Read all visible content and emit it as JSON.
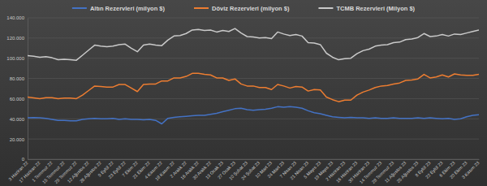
{
  "chart_data": {
    "type": "line",
    "categories": [
      "3 Haziran 22",
      null,
      "17 Haziran 22",
      null,
      "1 Temmuz 22",
      null,
      "15 Temmuz 22",
      null,
      "29 Temmuz 22",
      null,
      "12 Ağustos 22",
      null,
      "26 Ağustos 22",
      null,
      "9 Eylül 22",
      null,
      "23 Eylül 22",
      null,
      "7 Ekim 22",
      null,
      "21 Ekim 22",
      null,
      "4 Kasım 22",
      null,
      "18 Kasım 22",
      null,
      "2 Aralık 22",
      null,
      "16 Aralık 22",
      null,
      "30 Aralık 22",
      null,
      "13 Ocak 23",
      null,
      "27 Ocak 23",
      null,
      "10 Şubat 23",
      null,
      "24 Şubat 23",
      null,
      "10 Mart 23",
      null,
      "24 Mart 23",
      null,
      "7 Nisan 23",
      null,
      "21 Nisan 23",
      null,
      "5 Mayıs 23",
      null,
      "19 Mayıs 23",
      null,
      "2 Haziran 23",
      null,
      "16 Haziran 23",
      null,
      "30 Haziran 23",
      null,
      "14 Temmuz 23",
      null,
      "28 Temmuz 23",
      null,
      "11 Ağustos 23",
      null,
      "25 Ağustos 23",
      null,
      "8 Eylül 23",
      null,
      "22 Eylül 23",
      null,
      "6 Ekim 23",
      null,
      "20 Ekim 23",
      null,
      "3 Kasım 23"
    ],
    "series": [
      {
        "name": "Altın Rezervleri (milyon $)",
        "color": "#4472c4",
        "values": [
          41000,
          41200,
          41000,
          40500,
          39500,
          38500,
          38500,
          38000,
          38000,
          39500,
          40000,
          40500,
          40000,
          40000,
          40500,
          39500,
          40000,
          39500,
          39500,
          39000,
          39500,
          38500,
          35000,
          40500,
          41500,
          42000,
          42500,
          43000,
          43500,
          43500,
          44500,
          45500,
          47000,
          48500,
          50000,
          50500,
          49000,
          48500,
          49000,
          49500,
          50500,
          52000,
          51500,
          52000,
          51500,
          50500,
          48000,
          46000,
          45000,
          43500,
          42000,
          41500,
          41000,
          41500,
          41000,
          41000,
          40500,
          41000,
          40500,
          40500,
          41000,
          40500,
          40500,
          40500,
          41000,
          40500,
          41000,
          40500,
          40000,
          40500,
          39500,
          40000,
          42000,
          43500,
          44000
        ]
      },
      {
        "name": "Döviz Rezervleri (milyon $)",
        "color": "#ed7d31",
        "values": [
          61500,
          60800,
          60000,
          61000,
          61000,
          60000,
          60500,
          60500,
          60000,
          63500,
          68000,
          72500,
          72000,
          71500,
          71500,
          74000,
          74000,
          70500,
          67000,
          74000,
          74500,
          74500,
          77500,
          77500,
          80500,
          80500,
          82000,
          85000,
          85000,
          84000,
          83500,
          80500,
          80500,
          78000,
          79500,
          74500,
          72500,
          72500,
          71000,
          71000,
          69000,
          74000,
          72500,
          70500,
          72000,
          71500,
          67500,
          69000,
          68500,
          61500,
          59000,
          57000,
          58500,
          58500,
          63500,
          66500,
          68500,
          71000,
          72500,
          73000,
          74500,
          75500,
          78000,
          78500,
          79500,
          84000,
          80500,
          81500,
          83500,
          81500,
          84500,
          83500,
          83000,
          83000,
          84000
        ]
      },
      {
        "name": "TCMB Rezervleri (Milyon $)",
        "color": "#c9c9c9",
        "values": [
          102500,
          102000,
          101000,
          101500,
          100500,
          98500,
          99000,
          98500,
          98000,
          103000,
          108000,
          113000,
          112000,
          111500,
          112000,
          113500,
          114000,
          110000,
          106500,
          113000,
          114000,
          113000,
          112500,
          118000,
          122000,
          122500,
          124500,
          128000,
          128500,
          127500,
          128000,
          126000,
          127500,
          126500,
          129500,
          125000,
          121500,
          121000,
          120000,
          120500,
          119500,
          126000,
          124000,
          122500,
          123500,
          122000,
          115500,
          115000,
          113500,
          105000,
          101000,
          98500,
          99500,
          100000,
          104500,
          107500,
          109000,
          112000,
          113000,
          113500,
          115500,
          116000,
          118500,
          119000,
          120500,
          124500,
          121500,
          122000,
          123500,
          122000,
          124000,
          123500,
          125000,
          126500,
          128000
        ]
      }
    ],
    "ylim": [
      0,
      140000
    ],
    "yticks": [
      0,
      {
        "value": 20000,
        "label": "20.000"
      },
      {
        "value": 40000,
        "label": "40.000"
      },
      {
        "value": 60000,
        "label": "60.000"
      },
      {
        "value": 80000,
        "label": "80.000"
      },
      {
        "value": 100000,
        "label": "100.000"
      },
      {
        "value": 120000,
        "label": "120.000"
      },
      {
        "value": 140000,
        "label": "140.000"
      }
    ],
    "grid": true,
    "legend": "top"
  }
}
